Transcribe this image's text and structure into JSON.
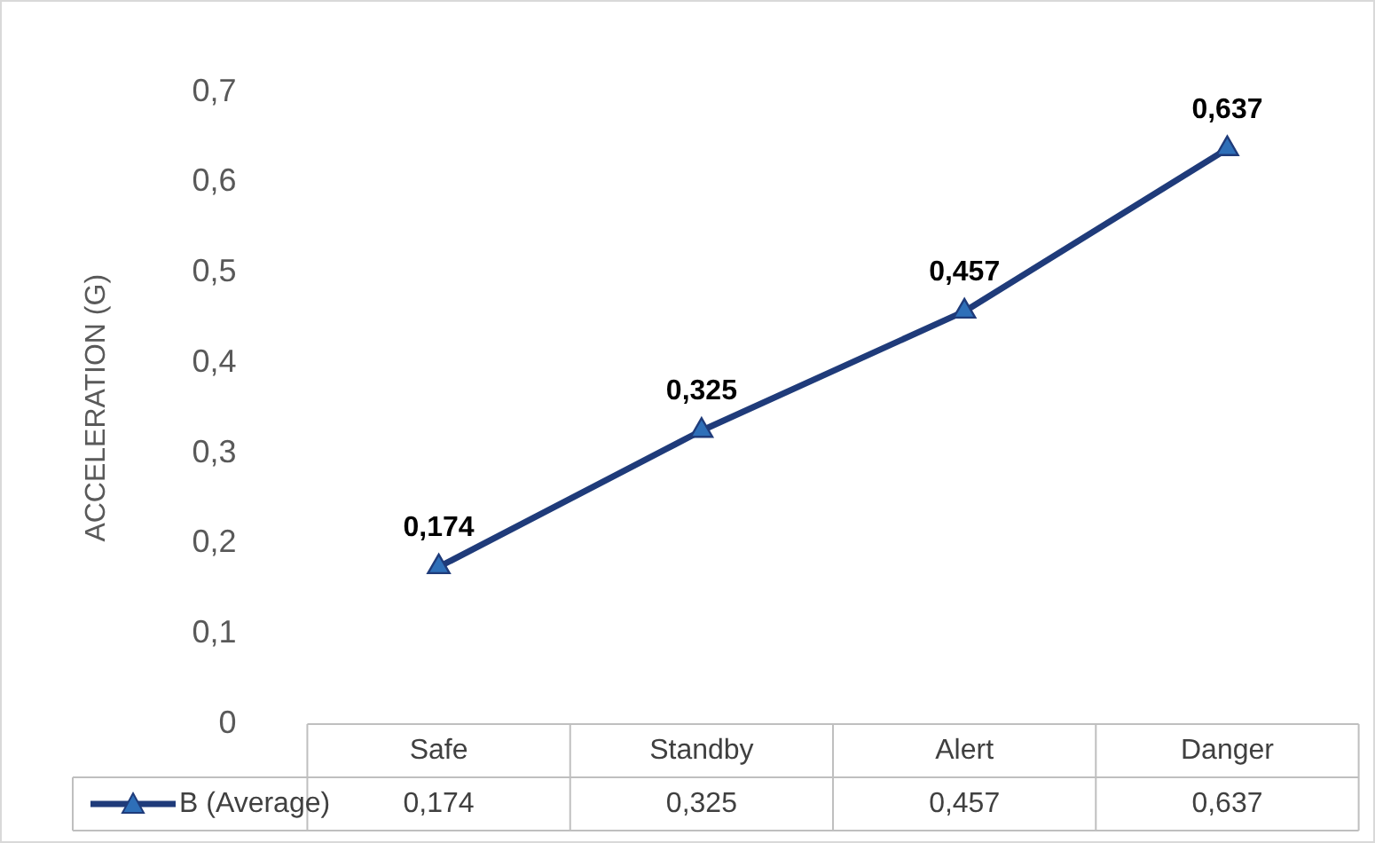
{
  "chart_data": {
    "type": "line",
    "ylabel": "ACCELERATION (G)",
    "categories": [
      "Safe",
      "Standby",
      "Alert",
      "Danger"
    ],
    "series": [
      {
        "name": "B (Average)",
        "color": "#1f3b7a",
        "values": [
          0.174,
          0.325,
          0.457,
          0.637
        ],
        "value_labels": [
          "0,174",
          "0,325",
          "0,457",
          "0,637"
        ]
      }
    ],
    "ylim": [
      0,
      0.7
    ],
    "yticks": [
      0,
      {
        "value": 0.1,
        "label": "0,1"
      },
      {
        "value": 0.2,
        "label": "0,2"
      },
      {
        "value": 0.3,
        "label": "0,3"
      },
      {
        "value": 0.4,
        "label": "0,4"
      },
      {
        "value": 0.5,
        "label": "0,5"
      },
      {
        "value": 0.6,
        "label": "0,6"
      },
      {
        "value": 0.7,
        "label": "0,7"
      }
    ],
    "grid": false,
    "legend": "bottom left",
    "marker": "triangle",
    "line_style": "solid"
  }
}
